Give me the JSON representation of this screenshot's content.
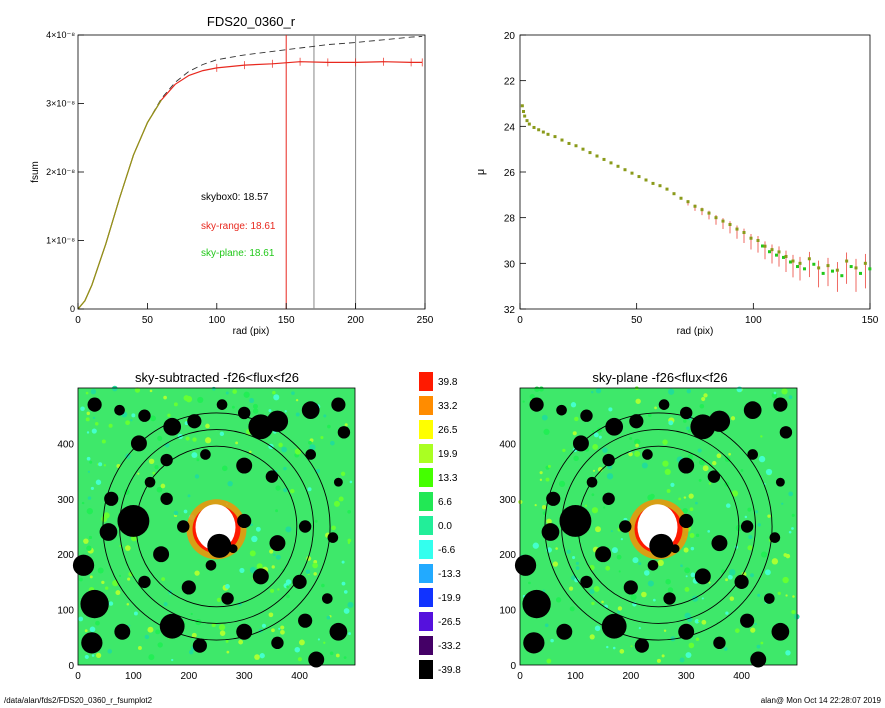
{
  "colors": {
    "red": "#e8281e",
    "green": "#22c81a",
    "olive": "#8a9a1a",
    "gray": "#888888"
  },
  "footer": {
    "left": "/data/alan/fds2/FDS20_0360_r_fsumplot2",
    "right": "alan@  Mon Oct 14 22:28:07 2019"
  },
  "chart_data": [
    {
      "type": "line",
      "title": "FDS20_0360_r",
      "xlabel": "rad (pix)",
      "ylabel": "fsum",
      "xlim": [
        0,
        250
      ],
      "ylim": [
        0,
        4e-08
      ],
      "xticks": [
        0,
        50,
        100,
        150,
        200,
        250
      ],
      "yticks": [
        {
          "v": 0,
          "label": "0"
        },
        {
          "v": 1e-08,
          "label": "1×10⁻⁸"
        },
        {
          "v": 2e-08,
          "label": "2×10⁻⁸"
        },
        {
          "v": 3e-08,
          "label": "3×10⁻⁸"
        },
        {
          "v": 4e-08,
          "label": "4×10⁻⁸"
        }
      ],
      "vlines": [
        {
          "x": 150,
          "color": "red"
        },
        {
          "x": 170,
          "color": "gray"
        },
        {
          "x": 200,
          "color": "gray"
        }
      ],
      "series": [
        {
          "style": "dashed",
          "color": "black",
          "x": [
            0,
            5,
            10,
            20,
            30,
            40,
            50,
            60,
            70,
            80,
            90,
            100,
            120,
            140,
            160,
            180,
            200,
            220,
            240,
            248
          ],
          "y": [
            0,
            1.2e-09,
            3.5e-09,
            9.5e-09,
            1.62e-08,
            2.25e-08,
            2.72e-08,
            3.07e-08,
            3.31e-08,
            3.47e-08,
            3.57e-08,
            3.64e-08,
            3.71e-08,
            3.76e-08,
            3.81e-08,
            3.86e-08,
            3.89e-08,
            3.93e-08,
            3.97e-08,
            3.98e-08
          ]
        },
        {
          "style": "solid-errorbars",
          "color": "red",
          "x": [
            0,
            5,
            10,
            20,
            30,
            40,
            50,
            60,
            70,
            80,
            90,
            100,
            120,
            140,
            160,
            180,
            200,
            220,
            240,
            248
          ],
          "y": [
            0,
            1.2e-09,
            3.5e-09,
            9.5e-09,
            1.62e-08,
            2.25e-08,
            2.72e-08,
            3.05e-08,
            3.28e-08,
            3.41e-08,
            3.48e-08,
            3.52e-08,
            3.56e-08,
            3.58e-08,
            3.61e-08,
            3.6e-08,
            3.6e-08,
            3.61e-08,
            3.6e-08,
            3.6e-08
          ]
        }
      ],
      "annotations": [
        {
          "text": "skybox0: 18.57",
          "color": "black",
          "x": 88,
          "y": 1.7e-08
        },
        {
          "text": "sky-range: 18.61",
          "color": "red",
          "x": 88,
          "y": 1.2e-08
        },
        {
          "text": "sky-plane: 18.61",
          "color": "green",
          "x": 88,
          "y": 8e-09
        }
      ]
    },
    {
      "type": "scatter",
      "title": "",
      "xlabel": "rad (pix)",
      "ylabel": "μ",
      "xlim": [
        0,
        150
      ],
      "ylim": [
        32,
        20
      ],
      "xticks": [
        0,
        50,
        100,
        150
      ],
      "yticks": [
        20,
        22,
        24,
        26,
        28,
        30,
        32
      ],
      "points": {
        "x": [
          1,
          1.5,
          2,
          3,
          4,
          6,
          8,
          10,
          12,
          15,
          18,
          21,
          24,
          27,
          30,
          33,
          36,
          39,
          42,
          45,
          48,
          51,
          54,
          57,
          60,
          63,
          66,
          69,
          72,
          75,
          78,
          81,
          84,
          87,
          90,
          93,
          96,
          99,
          102,
          105,
          108,
          111,
          114,
          117,
          120,
          124,
          128,
          132,
          136,
          140,
          144,
          148
        ],
        "y": [
          23.1,
          23.35,
          23.55,
          23.75,
          23.9,
          24.05,
          24.15,
          24.25,
          24.35,
          24.45,
          24.6,
          24.75,
          24.85,
          25.0,
          25.15,
          25.3,
          25.45,
          25.6,
          25.75,
          25.9,
          26.05,
          26.2,
          26.35,
          26.5,
          26.6,
          26.75,
          26.95,
          27.15,
          27.3,
          27.5,
          27.65,
          27.8,
          28.0,
          28.15,
          28.3,
          28.5,
          28.65,
          28.9,
          29.0,
          29.25,
          29.4,
          29.5,
          29.7,
          29.9,
          30.0,
          29.8,
          30.2,
          30.1,
          30.3,
          29.9,
          30.2,
          30.0
        ]
      }
    },
    {
      "type": "heatmap",
      "title": "sky-subtracted -f26<flux<f26",
      "xlim": [
        0,
        500
      ],
      "ylim": [
        0,
        500
      ],
      "xticks": [
        0,
        100,
        200,
        300,
        400
      ],
      "yticks": [
        0,
        100,
        200,
        300,
        400
      ],
      "circles_r": [
        145,
        175,
        205
      ]
    },
    {
      "type": "heatmap",
      "title": "sky-plane -f26<flux<f26",
      "xlim": [
        0,
        500
      ],
      "ylim": [
        0,
        500
      ],
      "xticks": [
        0,
        100,
        200,
        300,
        400
      ],
      "yticks": [
        0,
        100,
        200,
        300,
        400
      ],
      "circles_r": [
        145,
        175,
        205
      ]
    },
    {
      "type": "colorbar",
      "labels": [
        "39.8",
        "33.2",
        "26.5",
        "19.9",
        "13.3",
        "6.6",
        "0.0",
        "-6.6",
        "-13.3",
        "-19.9",
        "-26.5",
        "-33.2",
        "-39.8"
      ],
      "colors": [
        "#ff1a00",
        "#ff8c00",
        "#ffff00",
        "#aaff22",
        "#44ff00",
        "#22e855",
        "#22ee99",
        "#33ffee",
        "#22aaff",
        "#1133ff",
        "#5511dd",
        "#440066",
        "#000000"
      ]
    }
  ]
}
